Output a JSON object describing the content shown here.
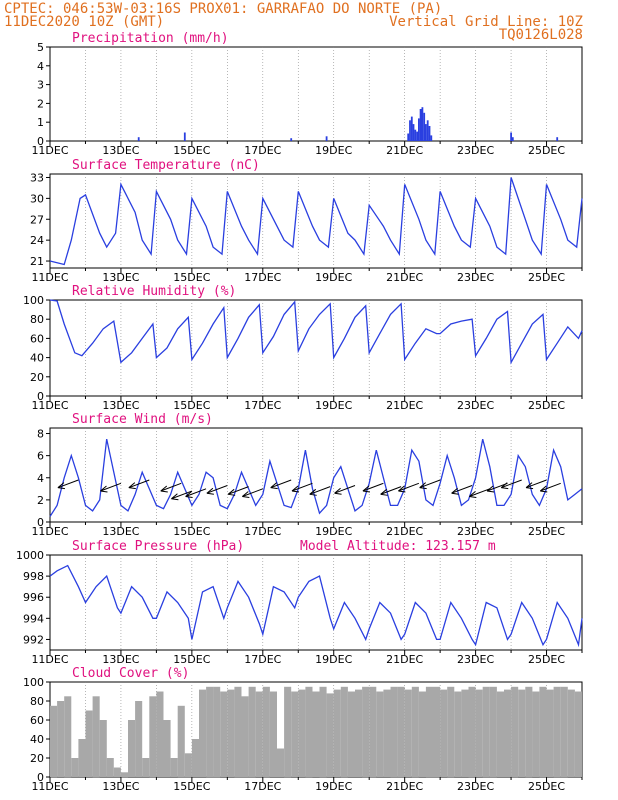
{
  "header": {
    "station_line": "CPTEC:  046:53W-03:16S  PROX01: GARRAFAO DO NORTE (PA)",
    "date_line": "11DEC2020 10Z (GMT)",
    "grid_line": "Vertical Grid Line: 10Z",
    "model_code": "TQ0126L028"
  },
  "x_labels": [
    "11DEC",
    "13DEC",
    "15DEC",
    "17DEC",
    "19DEC",
    "21DEC",
    "23DEC",
    "25DEC"
  ],
  "x_label_days": [
    0,
    2,
    4,
    6,
    8,
    10,
    12,
    14
  ],
  "x_range_days": [
    0,
    15
  ],
  "colors": {
    "series": "#2a3fe0",
    "cloud": "#a8a8a8",
    "header": "#e07020",
    "title": "#e0117f"
  },
  "chart_data": [
    {
      "type": "bar",
      "title": "Precipitation (mm/h)",
      "ylim": [
        0,
        5
      ],
      "yticks": [
        "0",
        "1",
        "2",
        "3",
        "4",
        "5"
      ],
      "x": [
        2.5,
        3.8,
        6.8,
        7.8,
        10.1,
        10.15,
        10.2,
        10.25,
        10.3,
        10.35,
        10.4,
        10.45,
        10.5,
        10.55,
        10.6,
        10.65,
        10.7,
        10.75,
        13.0,
        13.05,
        14.3
      ],
      "values": [
        0.2,
        0.45,
        0.15,
        0.25,
        0.4,
        1.1,
        1.3,
        0.9,
        0.6,
        0.5,
        1.2,
        1.7,
        1.8,
        1.5,
        0.9,
        1.1,
        0.8,
        0.3,
        0.45,
        0.2,
        0.2
      ]
    },
    {
      "type": "line",
      "title": "Surface Temperature (nC)",
      "ylim": [
        20,
        33.5
      ],
      "yticks": [
        "21",
        "24",
        "27",
        "30",
        "33"
      ],
      "x": [
        0,
        0.4,
        0.6,
        0.85,
        1.0,
        1.4,
        1.6,
        1.85,
        2.0,
        2.4,
        2.6,
        2.85,
        3.0,
        3.4,
        3.6,
        3.85,
        4.0,
        4.4,
        4.6,
        4.85,
        5.0,
        5.4,
        5.6,
        5.85,
        6.0,
        6.4,
        6.6,
        6.85,
        7.0,
        7.4,
        7.6,
        7.85,
        8.0,
        8.4,
        8.6,
        8.85,
        9.0,
        9.4,
        9.6,
        9.85,
        10.0,
        10.4,
        10.6,
        10.85,
        11.0,
        11.4,
        11.6,
        11.85,
        12.0,
        12.4,
        12.6,
        12.85,
        13.0,
        13.4,
        13.6,
        13.85,
        14.0,
        14.4,
        14.6,
        14.85,
        15.0
      ],
      "values": [
        21,
        20.5,
        24,
        30,
        30.5,
        25,
        23,
        25,
        32,
        28,
        24,
        22,
        31,
        27,
        24,
        22,
        30,
        26,
        23,
        22,
        31,
        26,
        24,
        22,
        30,
        26,
        24,
        23,
        31,
        26,
        24,
        23,
        30,
        25,
        24,
        22,
        29,
        26,
        24,
        22,
        32,
        27,
        24,
        22,
        31,
        26,
        24,
        23,
        30,
        26,
        23,
        22,
        33,
        27,
        24,
        22,
        32,
        27,
        24,
        23,
        30
      ]
    },
    {
      "type": "line",
      "title": "Relative Humidity (%)",
      "ylim": [
        0,
        100
      ],
      "yticks": [
        "0",
        "20",
        "40",
        "60",
        "80",
        "100"
      ],
      "x": [
        0,
        0.2,
        0.4,
        0.7,
        0.9,
        1.2,
        1.5,
        1.8,
        2.0,
        2.3,
        2.6,
        2.9,
        3.0,
        3.3,
        3.6,
        3.9,
        4.0,
        4.3,
        4.6,
        4.9,
        5.0,
        5.3,
        5.6,
        5.9,
        6.0,
        6.3,
        6.6,
        6.9,
        7.0,
        7.3,
        7.6,
        7.9,
        8.0,
        8.3,
        8.6,
        8.9,
        9.0,
        9.3,
        9.6,
        9.9,
        10.0,
        10.3,
        10.6,
        10.9,
        11.0,
        11.3,
        11.6,
        11.9,
        12.0,
        12.3,
        12.6,
        12.9,
        13.0,
        13.3,
        13.6,
        13.9,
        14.0,
        14.3,
        14.6,
        14.9,
        15.0
      ],
      "values": [
        100,
        99,
        75,
        45,
        42,
        55,
        70,
        78,
        35,
        45,
        60,
        75,
        40,
        50,
        70,
        82,
        38,
        55,
        75,
        92,
        40,
        60,
        82,
        95,
        45,
        62,
        85,
        98,
        47,
        70,
        85,
        96,
        40,
        60,
        82,
        94,
        45,
        65,
        85,
        96,
        38,
        55,
        70,
        65,
        65,
        75,
        78,
        80,
        42,
        60,
        80,
        88,
        35,
        55,
        75,
        85,
        38,
        55,
        72,
        60,
        68
      ]
    },
    {
      "type": "line",
      "title": "Surface Wind (m/s)",
      "ylim": [
        0,
        8.5
      ],
      "yticks": [
        "0",
        "2",
        "4",
        "6",
        "8"
      ],
      "x": [
        0,
        0.2,
        0.4,
        0.6,
        0.8,
        1.0,
        1.2,
        1.4,
        1.6,
        1.8,
        2.0,
        2.2,
        2.4,
        2.6,
        2.8,
        3.0,
        3.2,
        3.4,
        3.6,
        3.8,
        4.0,
        4.2,
        4.4,
        4.6,
        4.8,
        5.0,
        5.2,
        5.4,
        5.6,
        5.8,
        6.0,
        6.2,
        6.4,
        6.6,
        6.8,
        7.0,
        7.2,
        7.4,
        7.6,
        7.8,
        8.0,
        8.2,
        8.4,
        8.6,
        8.8,
        9.0,
        9.2,
        9.4,
        9.6,
        9.8,
        10.0,
        10.2,
        10.4,
        10.6,
        10.8,
        11.0,
        11.2,
        11.4,
        11.6,
        11.8,
        12.0,
        12.2,
        12.4,
        12.6,
        12.8,
        13.0,
        13.2,
        13.4,
        13.6,
        13.8,
        14.0,
        14.2,
        14.4,
        14.6,
        14.8,
        15.0
      ],
      "values": [
        0.5,
        1.5,
        4,
        6,
        4,
        1.5,
        1,
        2,
        7.5,
        4.5,
        1.5,
        1,
        2.5,
        4.5,
        3,
        1.5,
        1.2,
        2.5,
        4.5,
        3,
        1.5,
        2.5,
        4.5,
        4,
        1.5,
        1.2,
        2.5,
        4.5,
        3,
        1.5,
        2.5,
        5.5,
        3.5,
        1.5,
        1.3,
        3,
        6.5,
        3,
        0.8,
        1.5,
        4,
        5,
        3,
        1,
        1.5,
        3.5,
        6.5,
        4,
        1.5,
        1.5,
        3,
        6.5,
        5.5,
        2,
        1.5,
        3.5,
        6,
        4,
        1.5,
        2,
        4,
        7.5,
        5,
        1.5,
        1.5,
        2.5,
        6,
        5,
        2.5,
        1.5,
        3,
        6.5,
        5,
        2,
        2.5,
        3
      ]
    },
    {
      "type": "line",
      "title": "Surface Pressure (hPa)",
      "subtitle": "Model Altitude: 123.157 m",
      "ylim": [
        991,
        1000
      ],
      "yticks": [
        "992",
        "994",
        "996",
        "998",
        "1000"
      ],
      "x": [
        0,
        0.2,
        0.5,
        0.8,
        1.0,
        1.3,
        1.6,
        1.9,
        2.0,
        2.3,
        2.6,
        2.9,
        3.0,
        3.3,
        3.6,
        3.9,
        4.0,
        4.3,
        4.6,
        4.9,
        5.0,
        5.3,
        5.6,
        5.9,
        6.0,
        6.3,
        6.6,
        6.9,
        7.0,
        7.3,
        7.6,
        7.9,
        8.0,
        8.3,
        8.6,
        8.9,
        9.0,
        9.3,
        9.6,
        9.9,
        10.0,
        10.3,
        10.6,
        10.9,
        11.0,
        11.3,
        11.6,
        11.9,
        12.0,
        12.3,
        12.6,
        12.9,
        13.0,
        13.3,
        13.6,
        13.9,
        14.0,
        14.3,
        14.6,
        14.9,
        15.0
      ],
      "values": [
        998,
        998.5,
        999,
        997,
        995.5,
        997,
        998,
        995,
        994.5,
        997,
        996,
        994,
        994,
        996.5,
        995.5,
        994,
        992,
        996.5,
        997,
        994,
        995,
        997.5,
        996,
        993.5,
        992.5,
        997,
        996.5,
        995,
        996,
        997.5,
        998,
        994,
        993,
        995.5,
        994,
        992,
        993,
        995.5,
        994.5,
        992,
        992.5,
        995.5,
        994.5,
        992,
        992,
        995.5,
        994,
        992,
        991.5,
        995.5,
        995,
        992,
        992.5,
        995.5,
        994,
        991.5,
        992,
        995.5,
        994,
        991.5,
        994
      ]
    },
    {
      "type": "bar",
      "title": "Cloud Cover (%)",
      "ylim": [
        0,
        100
      ],
      "yticks": [
        "0",
        "20",
        "40",
        "60",
        "80",
        "100"
      ],
      "x": [
        0.1,
        0.3,
        0.5,
        0.7,
        0.9,
        1.1,
        1.3,
        1.5,
        1.7,
        1.9,
        2.1,
        2.3,
        2.5,
        2.7,
        2.9,
        3.1,
        3.3,
        3.5,
        3.7,
        3.9,
        4.1,
        4.3,
        4.5,
        4.7,
        4.9,
        5.1,
        5.3,
        5.5,
        5.7,
        5.9,
        6.1,
        6.3,
        6.5,
        6.7,
        6.9,
        7.1,
        7.3,
        7.5,
        7.7,
        7.9,
        8.1,
        8.3,
        8.5,
        8.7,
        8.9,
        9.1,
        9.3,
        9.5,
        9.7,
        9.9,
        10.1,
        10.3,
        10.5,
        10.7,
        10.9,
        11.1,
        11.3,
        11.5,
        11.7,
        11.9,
        12.1,
        12.3,
        12.5,
        12.7,
        12.9,
        13.1,
        13.3,
        13.5,
        13.7,
        13.9,
        14.1,
        14.3,
        14.5,
        14.7,
        14.9
      ],
      "values": [
        75,
        80,
        85,
        20,
        40,
        70,
        85,
        60,
        20,
        10,
        5,
        60,
        80,
        20,
        85,
        90,
        60,
        20,
        75,
        25,
        40,
        92,
        95,
        95,
        90,
        92,
        95,
        85,
        95,
        90,
        95,
        90,
        30,
        95,
        90,
        92,
        95,
        90,
        95,
        88,
        92,
        95,
        90,
        92,
        95,
        95,
        90,
        92,
        95,
        95,
        92,
        95,
        90,
        95,
        95,
        92,
        95,
        90,
        92,
        95,
        92,
        95,
        95,
        90,
        92,
        95,
        92,
        95,
        90,
        95,
        92,
        95,
        95,
        92,
        90
      ]
    }
  ],
  "wind_arrows": {
    "x": [
      0.8,
      2.0,
      2.8,
      3.7,
      4.0,
      4.4,
      5.0,
      5.6,
      6.0,
      6.8,
      7.4,
      7.9,
      8.6,
      9.4,
      9.9,
      10.4,
      11.0,
      11.9,
      12.4,
      12.9,
      13.3,
      14.0,
      14.4
    ],
    "y": [
      3.8,
      3.5,
      3.8,
      3.5,
      2.8,
      3.0,
      3.3,
      3.2,
      3.0,
      3.8,
      3.5,
      3.2,
      3.3,
      3.5,
      3.2,
      3.5,
      3.8,
      3.3,
      3.0,
      3.5,
      3.8,
      3.8,
      3.5
    ]
  }
}
